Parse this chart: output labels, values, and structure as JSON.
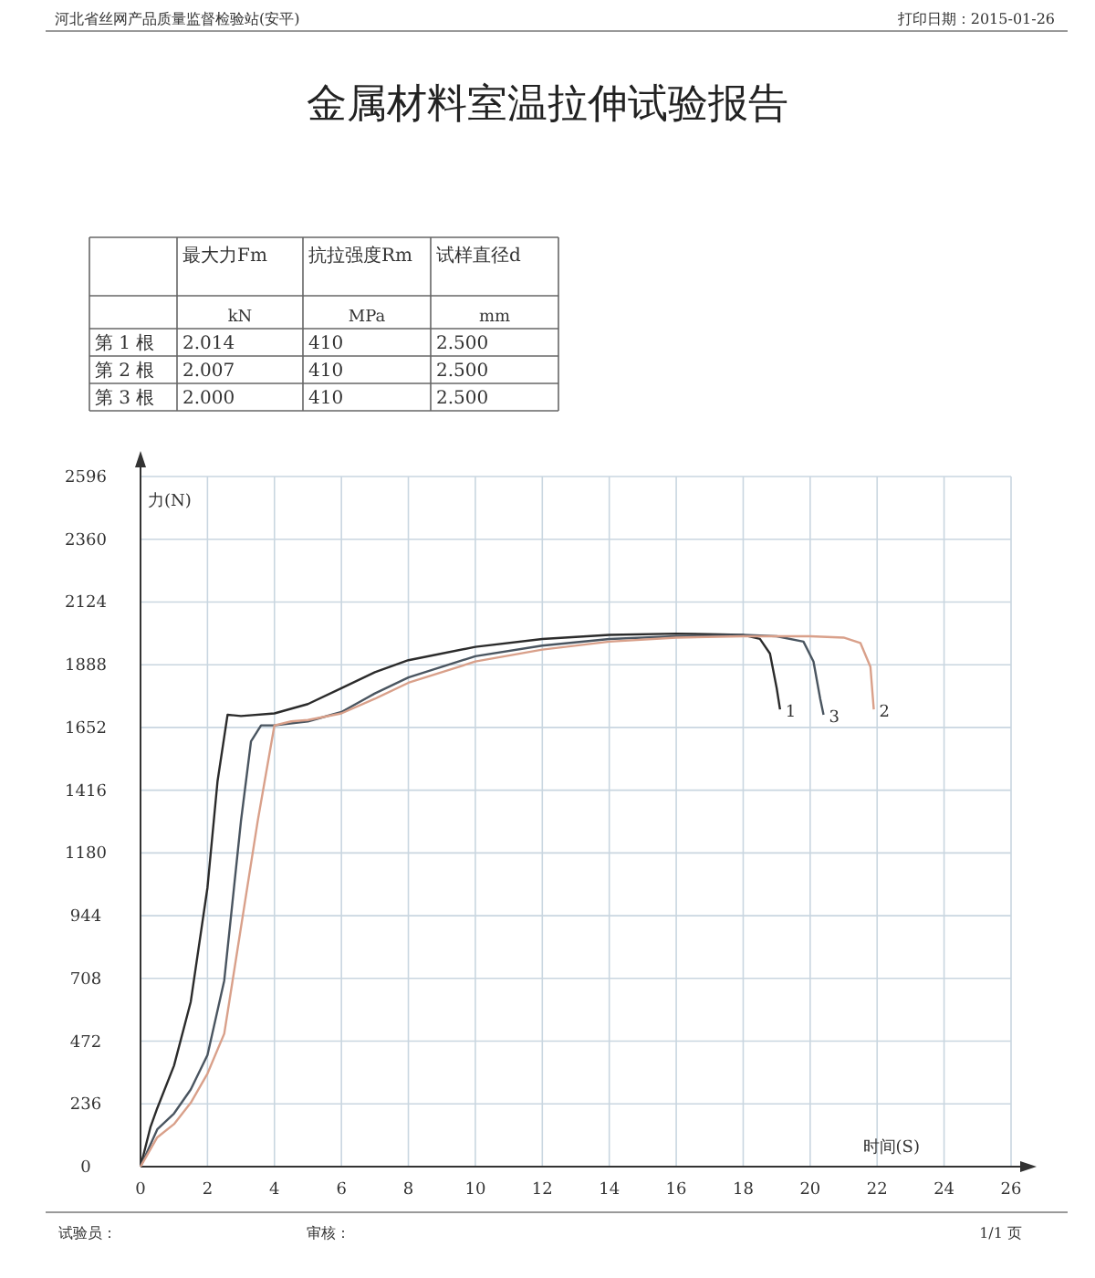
{
  "chart_data": [
    {
      "type": "other",
      "title": "金属材料室温拉伸试验报告",
      "annotations": [
        "河北省丝网产品质量监督检验站(安平)",
        "打印日期：2015-01-26",
        "最大力Fm",
        "抗拉强度Rm",
        "试样直径d",
        "kN",
        "MPa",
        "mm",
        "第 1 根",
        "2.014",
        "410",
        "2.500",
        "第 2 根",
        "2.007",
        "410",
        "2.500",
        "第 3 根",
        "2.000",
        "410",
        "2.500",
        "试验员：",
        "审核：",
        "1/1 页"
      ]
    },
    {
      "type": "line",
      "xlabel": "时间(S)",
      "ylabel": "力(N)",
      "xlim": [
        0,
        26
      ],
      "ylim": [
        0,
        2596
      ],
      "xticks": [
        0,
        2,
        4,
        6,
        8,
        10,
        12,
        14,
        16,
        18,
        20,
        22,
        24,
        26
      ],
      "yticks": [
        0,
        236,
        472,
        708,
        944,
        1180,
        1416,
        1652,
        1888,
        2124,
        2360,
        2596
      ],
      "grid": true,
      "series": [
        {
          "name": "1",
          "color": "#2b2b2b",
          "x": [
            0,
            0.3,
            0.5,
            1,
            1.5,
            2,
            2.3,
            2.6,
            3,
            4,
            5,
            6,
            7,
            8,
            10,
            12,
            14,
            16,
            18,
            18.5,
            18.8,
            19,
            19.1
          ],
          "values": [
            0,
            150,
            220,
            380,
            620,
            1050,
            1450,
            1700,
            1695,
            1705,
            1740,
            1800,
            1860,
            1905,
            1955,
            1985,
            2000,
            2005,
            2000,
            1985,
            1930,
            1800,
            1720
          ]
        },
        {
          "name": "3",
          "color": "#4a5560",
          "x": [
            0,
            0.5,
            1,
            1.5,
            2,
            2.5,
            3,
            3.3,
            3.6,
            4,
            5,
            6,
            7,
            8,
            10,
            12,
            14,
            16,
            18,
            19,
            19.8,
            20.1,
            20.3,
            20.4
          ],
          "values": [
            0,
            140,
            200,
            290,
            420,
            700,
            1300,
            1600,
            1660,
            1660,
            1675,
            1710,
            1780,
            1840,
            1920,
            1960,
            1985,
            1995,
            2000,
            1995,
            1975,
            1900,
            1760,
            1700
          ]
        },
        {
          "name": "2",
          "color": "#d9a08a",
          "x": [
            0,
            0.5,
            1,
            1.5,
            2,
            2.5,
            3,
            3.5,
            4,
            4.5,
            5,
            6,
            7,
            8,
            10,
            12,
            14,
            16,
            18,
            20,
            21,
            21.5,
            21.8,
            21.9
          ],
          "values": [
            0,
            110,
            160,
            240,
            350,
            500,
            900,
            1300,
            1660,
            1675,
            1680,
            1705,
            1760,
            1820,
            1900,
            1945,
            1975,
            1990,
            1995,
            1995,
            1990,
            1970,
            1880,
            1720
          ]
        }
      ]
    }
  ]
}
